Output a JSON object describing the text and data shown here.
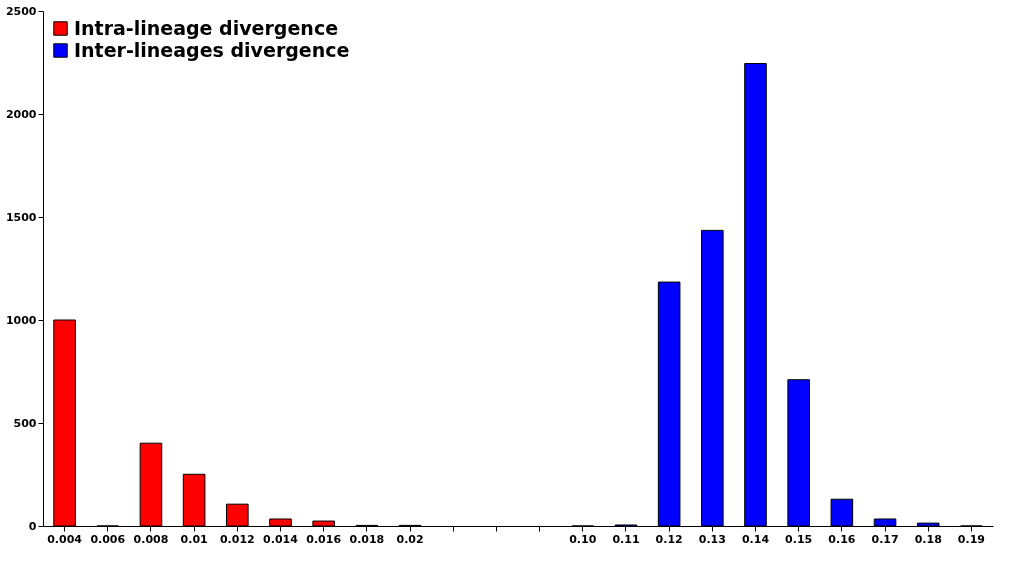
{
  "chart_data": {
    "type": "bar",
    "categories": [
      "0.004",
      "0.006",
      "0.008",
      "0.01",
      "0.012",
      "0.014",
      "0.016",
      "0.018",
      "0.02",
      null,
      null,
      null,
      "0.10",
      "0.11",
      "0.12",
      "0.13",
      "0.14",
      "0.15",
      "0.16",
      "0.17",
      "0.18",
      "0.19"
    ],
    "series": [
      {
        "name": "Intra-lineage divergence",
        "color": "#ff0000",
        "values": [
          1000,
          0,
          402,
          251,
          106,
          34,
          24,
          3,
          3,
          null,
          null,
          null,
          null,
          null,
          null,
          null,
          null,
          null,
          null,
          null,
          null,
          null
        ]
      },
      {
        "name": "Inter-lineages divergence",
        "color": "#0000ff",
        "values": [
          null,
          null,
          null,
          null,
          null,
          null,
          null,
          null,
          null,
          null,
          null,
          null,
          0,
          5,
          1184,
          1435,
          2245,
          710,
          130,
          34,
          14,
          0
        ]
      }
    ],
    "ylim": [
      0,
      2500
    ],
    "yticks": [
      0,
      500,
      1000,
      1500,
      2000,
      2500
    ],
    "grid": false,
    "legend": "top left"
  }
}
